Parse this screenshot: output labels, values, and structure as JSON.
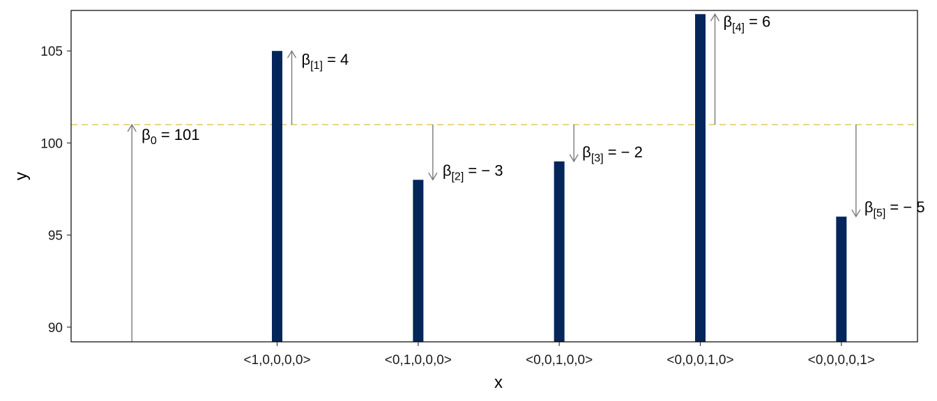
{
  "chart_data": {
    "type": "bar",
    "categories": [
      "<1,0,0,0,0>",
      "<0,1,0,0,0>",
      "<0,0,1,0,0>",
      "<0,0,0,1,0>",
      "<0,0,0,0,1>"
    ],
    "values": [
      105,
      98,
      99,
      107,
      96
    ],
    "xlabel": "x",
    "ylabel": "y",
    "ylim": [
      89.2,
      107.2
    ],
    "yticks": [
      90,
      95,
      100,
      105
    ],
    "baseline": 101,
    "grid": false,
    "colors": {
      "bar": "#05265a",
      "baseline": "#e3cc6e",
      "arrow": "#7a7a7a"
    },
    "annotations": [
      {
        "symbol": "β",
        "sub": "0",
        "rest": " = 101",
        "from": 89.2,
        "to": 101
      },
      {
        "symbol": "β",
        "sub": "[1]",
        "rest": " = 4",
        "from": 101,
        "to": 105
      },
      {
        "symbol": "β",
        "sub": "[2]",
        "rest": " = − 3",
        "from": 101,
        "to": 98
      },
      {
        "symbol": "β",
        "sub": "[3]",
        "rest": " = − 2",
        "from": 101,
        "to": 99
      },
      {
        "symbol": "β",
        "sub": "[4]",
        "rest": " = 6",
        "from": 101,
        "to": 107
      },
      {
        "symbol": "β",
        "sub": "[5]",
        "rest": " = − 5",
        "from": 101,
        "to": 96
      }
    ]
  }
}
